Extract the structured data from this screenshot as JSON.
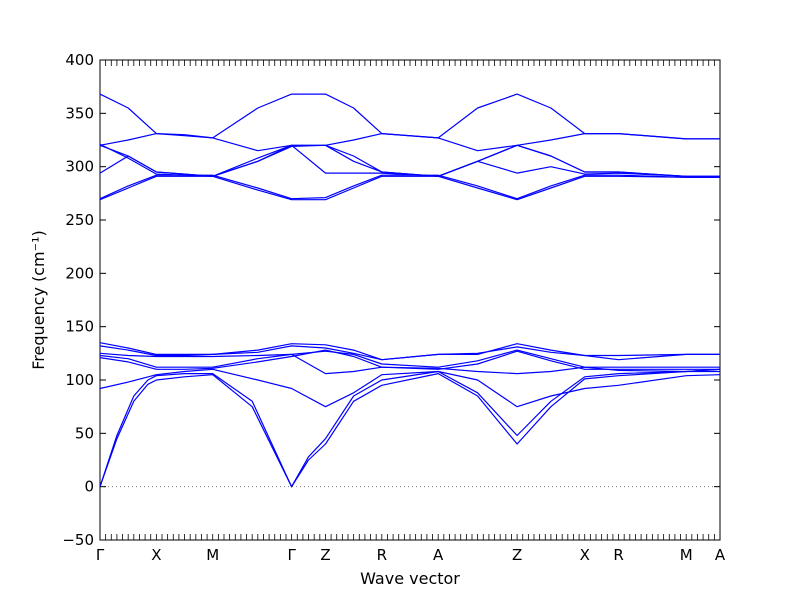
{
  "chart_data": {
    "type": "line",
    "title": "",
    "xlabel": "Wave vector",
    "ylabel": "Frequency (cm⁻¹)",
    "ylim": [
      -50,
      400
    ],
    "yticks": [
      -50,
      0,
      50,
      100,
      150,
      200,
      250,
      300,
      350,
      400
    ],
    "xlim": [
      0,
      11
    ],
    "kpoints": [
      {
        "label": "Γ",
        "x": 0
      },
      {
        "label": "X",
        "x": 1
      },
      {
        "label": "M",
        "x": 2
      },
      {
        "label": "Γ",
        "x": 3.4
      },
      {
        "label": "Z",
        "x": 4
      },
      {
        "label": "R",
        "x": 5
      },
      {
        "label": "A",
        "x": 6
      },
      {
        "label": "Z",
        "x": 7.4
      },
      {
        "label": "X",
        "x": 8.6
      },
      {
        "label": "R",
        "x": 9.2
      },
      {
        "label": "M",
        "x": 10.4
      },
      {
        "label": "A",
        "x": 11
      }
    ],
    "zero_line": {
      "y": 0,
      "style": "dotted",
      "color": "#808080"
    },
    "line_color": "#0000ff",
    "grid": false,
    "legend": "none",
    "series": [
      {
        "x": [
          0,
          0.3,
          0.6,
          0.85,
          1,
          1.5,
          2,
          2.7,
          3.4,
          3.7,
          4,
          4.5,
          5,
          6,
          6.7,
          7.4,
          8.0,
          8.6,
          9.2,
          10.4,
          11
        ],
        "y": [
          0,
          45,
          80,
          96,
          100,
          103,
          105,
          75,
          0,
          25,
          40,
          80,
          95,
          106,
          85,
          40,
          75,
          101,
          104,
          108,
          110
        ]
      },
      {
        "x": [
          0,
          0.3,
          0.6,
          0.85,
          1,
          1.5,
          2,
          2.7,
          3.4,
          3.7,
          4,
          4.5,
          5,
          6,
          6.7,
          7.4,
          8.0,
          8.6,
          9.2,
          10.4,
          11
        ],
        "y": [
          0,
          48,
          85,
          100,
          104,
          106,
          106,
          80,
          0,
          28,
          45,
          85,
          100,
          108,
          88,
          48,
          80,
          103,
          106,
          108,
          110
        ]
      },
      {
        "x": [
          0,
          0.5,
          1,
          1.5,
          2,
          2.8,
          3.4,
          4,
          4.5,
          5,
          6,
          6.7,
          7.4,
          8.0,
          8.6,
          9.2,
          10.4,
          11
        ],
        "y": [
          92,
          98,
          105,
          108,
          110,
          100,
          92,
          75,
          88,
          105,
          108,
          100,
          75,
          85,
          92,
          95,
          104,
          105
        ]
      },
      {
        "x": [
          0,
          0.5,
          1,
          1.5,
          2,
          2.8,
          3.4,
          4,
          4.5,
          5,
          6,
          6.7,
          7.4,
          8.0,
          8.6,
          9.2,
          10.4,
          11
        ],
        "y": [
          121,
          117,
          110,
          110,
          111,
          117,
          122,
          128,
          122,
          112,
          110,
          115,
          127,
          118,
          110,
          110,
          110,
          110
        ]
      },
      {
        "x": [
          0,
          0.5,
          1,
          1.5,
          2,
          2.8,
          3.4,
          4,
          4.5,
          5,
          6,
          6.7,
          7.4,
          8.0,
          8.6,
          9.2,
          10.4,
          11
        ],
        "y": [
          123,
          120,
          112,
          112,
          112,
          120,
          124,
          127,
          124,
          115,
          112,
          118,
          128,
          120,
          112,
          112,
          112,
          112
        ]
      },
      {
        "x": [
          0,
          0.5,
          1,
          1.5,
          2,
          2.8,
          3.4,
          4,
          4.5,
          5,
          6,
          6.7,
          7.4,
          8.0,
          8.6,
          9.2,
          10.4,
          11
        ],
        "y": [
          132,
          128,
          123,
          123,
          124,
          126,
          132,
          130,
          125,
          119,
          124,
          125,
          131,
          126,
          123,
          123,
          124,
          124
        ]
      },
      {
        "x": [
          0,
          0.5,
          1,
          1.5,
          2,
          2.8,
          3.4,
          4,
          4.5,
          5,
          6,
          6.7,
          7.4,
          8.0,
          8.6,
          9.2,
          10.4,
          11
        ],
        "y": [
          135,
          130,
          124,
          124,
          124,
          128,
          134,
          133,
          128,
          119,
          124,
          124,
          134,
          128,
          123,
          119,
          124,
          124
        ]
      },
      {
        "x": [
          0,
          0.5,
          1,
          1.5,
          2,
          2.8,
          3.4,
          4,
          4.5,
          5,
          6,
          6.7,
          7.4,
          8.0,
          8.6,
          9.2,
          10.4,
          11
        ],
        "y": [
          125,
          123,
          122,
          122,
          122,
          123,
          124,
          106,
          108,
          112,
          111,
          108,
          106,
          108,
          112,
          109,
          108,
          108
        ]
      },
      {
        "x": [
          0,
          0.5,
          1,
          1.5,
          2,
          2.8,
          3.4,
          4,
          4.5,
          5,
          6,
          6.7,
          7.4,
          8.0,
          8.6,
          9.2,
          10.4,
          11
        ],
        "y": [
          269,
          280,
          291,
          291,
          291,
          278,
          269,
          269,
          280,
          291,
          291,
          280,
          269,
          280,
          291,
          291,
          290,
          290
        ]
      },
      {
        "x": [
          0,
          0.5,
          1,
          1.5,
          2,
          2.8,
          3.4,
          4,
          4.5,
          5,
          6,
          6.7,
          7.4,
          8.0,
          8.6,
          9.2,
          10.4,
          11
        ],
        "y": [
          270,
          282,
          292,
          292,
          292,
          280,
          270,
          271,
          282,
          292,
          292,
          282,
          270,
          282,
          292,
          292,
          290,
          290
        ]
      },
      {
        "x": [
          0,
          0.5,
          1,
          1.5,
          2,
          2.8,
          3.4,
          4,
          4.5,
          5,
          6,
          6.7,
          7.4,
          8.0,
          8.6,
          9.2,
          10.4,
          11
        ],
        "y": [
          294,
          310,
          295,
          293,
          291,
          305,
          319,
          320,
          305,
          295,
          291,
          305,
          320,
          310,
          295,
          295,
          291,
          291
        ]
      },
      {
        "x": [
          0,
          0.5,
          1,
          1.5,
          2,
          2.8,
          3.4,
          4,
          4.5,
          5,
          6,
          6.7,
          7.4,
          8.0,
          8.6,
          9.2,
          10.4,
          11
        ],
        "y": [
          320,
          310,
          295,
          293,
          291,
          305,
          320,
          320,
          310,
          295,
          291,
          305,
          320,
          310,
          295,
          295,
          291,
          291
        ]
      },
      {
        "x": [
          0,
          0.5,
          1,
          1.5,
          2,
          2.8,
          3.4,
          4,
          4.5,
          5,
          6,
          6.7,
          7.4,
          8.0,
          8.6,
          9.2,
          10.4,
          11
        ],
        "y": [
          321,
          308,
          293,
          292,
          291,
          308,
          320,
          294,
          294,
          294,
          291,
          305,
          294,
          300,
          293,
          294,
          291,
          291
        ]
      },
      {
        "x": [
          0,
          0.5,
          1,
          1.5,
          2,
          2.8,
          3.4,
          4,
          4.5,
          5,
          6,
          6.7,
          7.4,
          8.0,
          8.6,
          9.2,
          10.4,
          11
        ],
        "y": [
          368,
          355,
          331,
          330,
          327,
          355,
          368,
          368,
          355,
          331,
          327,
          355,
          368,
          355,
          331,
          331,
          326,
          326
        ]
      },
      {
        "x": [
          0,
          0.5,
          1,
          1.5,
          2,
          2.8,
          3.4,
          4,
          4.5,
          5,
          6,
          6.7,
          7.4,
          8.0,
          8.6,
          9.2,
          10.4,
          11
        ],
        "y": [
          320,
          325,
          331,
          329,
          327,
          315,
          320,
          320,
          325,
          331,
          327,
          315,
          320,
          325,
          331,
          331,
          326,
          326
        ]
      }
    ]
  }
}
